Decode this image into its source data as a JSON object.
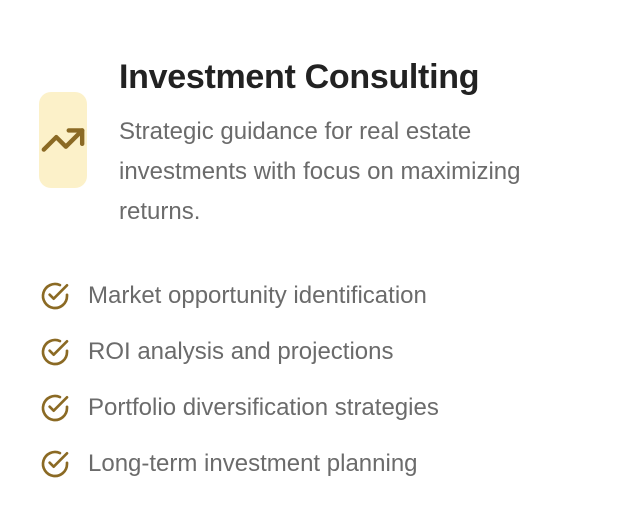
{
  "card": {
    "icon": "trending-up-icon",
    "title": "Investment Consulting",
    "description": "Strategic guidance for real estate investments with focus on maximizing returns.",
    "features": [
      {
        "icon": "check-circle-icon",
        "label": "Market opportunity identification"
      },
      {
        "icon": "check-circle-icon",
        "label": "ROI analysis and projections"
      },
      {
        "icon": "check-circle-icon",
        "label": "Portfolio diversification strategies"
      },
      {
        "icon": "check-circle-icon",
        "label": "Long-term investment planning"
      }
    ]
  },
  "colors": {
    "accent": "#8b6a24",
    "badge_bg": "#fcf1c9",
    "title": "#222222",
    "text": "#6b6b6b"
  }
}
